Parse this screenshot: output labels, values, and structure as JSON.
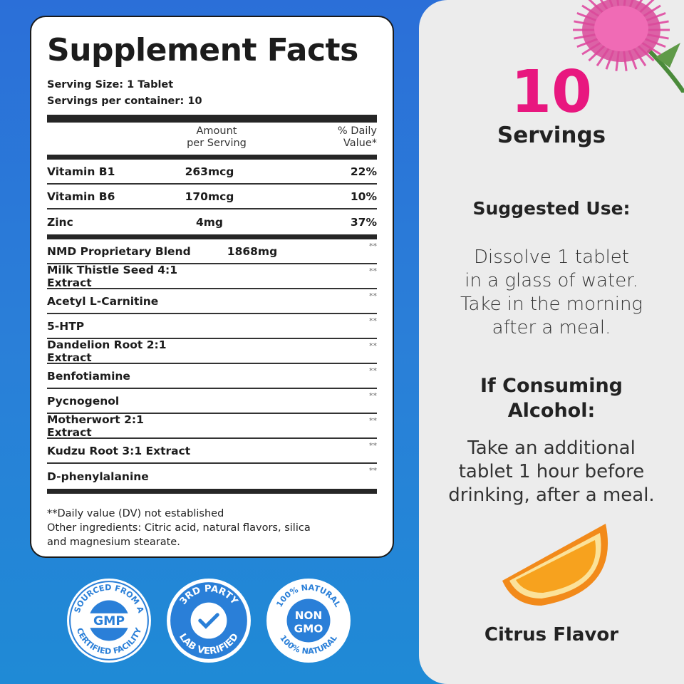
{
  "label": {
    "title": "Supplement Facts",
    "serving_size": "Serving Size: 1 Tablet",
    "servings_per_container": "Servings per container: 10",
    "col_amount_1": "Amount",
    "col_amount_2": "per Serving",
    "col_dv_1": "% Daily",
    "col_dv_2": "Value*",
    "nutrients": [
      {
        "name": "Vitamin B1",
        "amount": "263mcg",
        "dv": "22%"
      },
      {
        "name": "Vitamin B6",
        "amount": "170mcg",
        "dv": "10%"
      },
      {
        "name": "Zinc",
        "amount": "4mg",
        "dv": "37%"
      }
    ],
    "blend": [
      {
        "name": "NMD Proprietary Blend",
        "amount": "1868mg",
        "dv": "**"
      },
      {
        "name": "Milk Thistle Seed 4:1 Extract",
        "amount": "",
        "dv": "**"
      },
      {
        "name": "Acetyl L-Carnitine",
        "amount": "",
        "dv": "**"
      },
      {
        "name": "5-HTP",
        "amount": "",
        "dv": "**"
      },
      {
        "name": "Dandelion Root 2:1 Extract",
        "amount": "",
        "dv": "**"
      },
      {
        "name": "Benfotiamine",
        "amount": "",
        "dv": "**"
      },
      {
        "name": "Pycnogenol",
        "amount": "",
        "dv": "**"
      },
      {
        "name": "Motherwort 2:1 Extract",
        "amount": "",
        "dv": "**"
      },
      {
        "name": "Kudzu Root 3:1 Extract",
        "amount": "",
        "dv": "**"
      },
      {
        "name": "D-phenylalanine",
        "amount": "",
        "dv": "**"
      }
    ],
    "footnote": "**Daily value (DV) not established",
    "other_1": "Other ingredients: Citric acid, natural flavors, silica",
    "other_2": "and magnesium stearate."
  },
  "badges": [
    {
      "top": "SOURCED FROM A",
      "bottom": "CERTIFIED FACILITY",
      "center": "GMP"
    },
    {
      "top": "3RD PARTY",
      "bottom": "LAB VERIFIED",
      "icon": "check-icon"
    },
    {
      "top": "100% NATURAL",
      "bottom": "100% NATURAL",
      "center1": "NON",
      "center2": "GMO"
    }
  ],
  "right": {
    "count": "10",
    "count_label": "Servings",
    "suggested_heading": "Suggested Use:",
    "suggested": [
      "Dissolve 1 tablet",
      "in a glass of water.",
      "Take in the morning",
      "after a meal."
    ],
    "alcohol_heading_1": "If Consuming",
    "alcohol_heading_2": "Alcohol:",
    "alcohol": [
      "Take an additional",
      "tablet 1 hour before",
      "drinking, after a meal."
    ],
    "flavor": "Citrus Flavor"
  },
  "colors": {
    "accent": "#e8177f",
    "background": "#2b78d8",
    "panel": "#ececec"
  }
}
